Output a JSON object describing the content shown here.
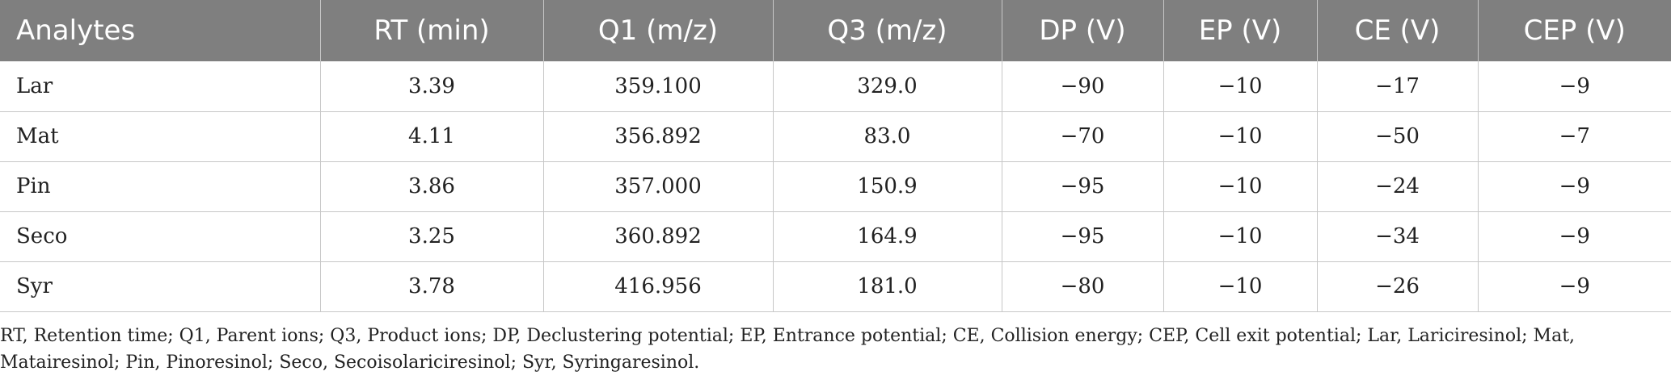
{
  "table": {
    "headers": [
      "Analytes",
      "RT (min)",
      "Q1 (m/z)",
      "Q3 (m/z)",
      "DP (V)",
      "EP (V)",
      "CE (V)",
      "CEP (V)"
    ],
    "rows": [
      [
        "Lar",
        "3.39",
        "359.100",
        "329.0",
        "−90",
        "−10",
        "−17",
        "−9"
      ],
      [
        "Mat",
        "4.11",
        "356.892",
        "83.0",
        "−70",
        "−10",
        "−50",
        "−7"
      ],
      [
        "Pin",
        "3.86",
        "357.000",
        "150.9",
        "−95",
        "−10",
        "−24",
        "−9"
      ],
      [
        "Seco",
        "3.25",
        "360.892",
        "164.9",
        "−95",
        "−10",
        "−34",
        "−9"
      ],
      [
        "Syr",
        "3.78",
        "416.956",
        "181.0",
        "−80",
        "−10",
        "−26",
        "−9"
      ]
    ]
  },
  "footnote": "RT, Retention time; Q1, Parent ions; Q3, Product ions; DP, Declustering potential; EP, Entrance potential; CE, Collision energy; CEP, Cell exit potential; Lar, Lariciresinol; Mat, Matairesinol; Pin, Pinoresinol; Seco, Secoisolariciresinol; Syr, Syringaresinol."
}
